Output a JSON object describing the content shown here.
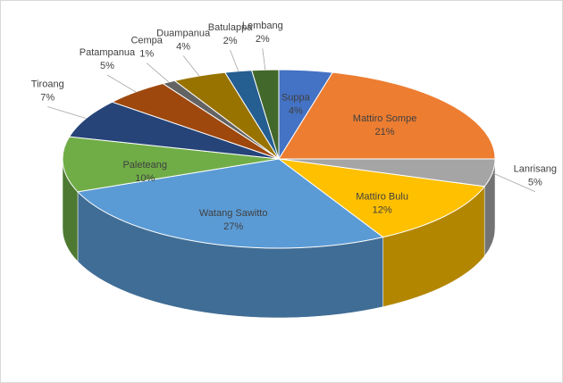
{
  "chart_data": {
    "type": "pie3d",
    "categories": [
      "Suppa",
      "Mattiro Sompe",
      "Lanrisang",
      "Mattiro Bulu",
      "Watang Sawitto",
      "Paleteang",
      "Tiroang",
      "Patampanua",
      "Cempa",
      "Duampanua",
      "Batulappa",
      "Lembang"
    ],
    "values": [
      4,
      21,
      5,
      12,
      27,
      10,
      7,
      5,
      1,
      4,
      2,
      2
    ],
    "value_labels": [
      "4%",
      "21%",
      "5%",
      "12%",
      "27%",
      "10%",
      "7%",
      "5%",
      "1%",
      "4%",
      "2%",
      "2%"
    ],
    "colors": [
      "#4472c4",
      "#ed7d31",
      "#a5a5a5",
      "#ffc000",
      "#5b9bd5",
      "#70ad47",
      "#264478",
      "#9e480e",
      "#636363",
      "#997300",
      "#255e91",
      "#43682b"
    ]
  }
}
